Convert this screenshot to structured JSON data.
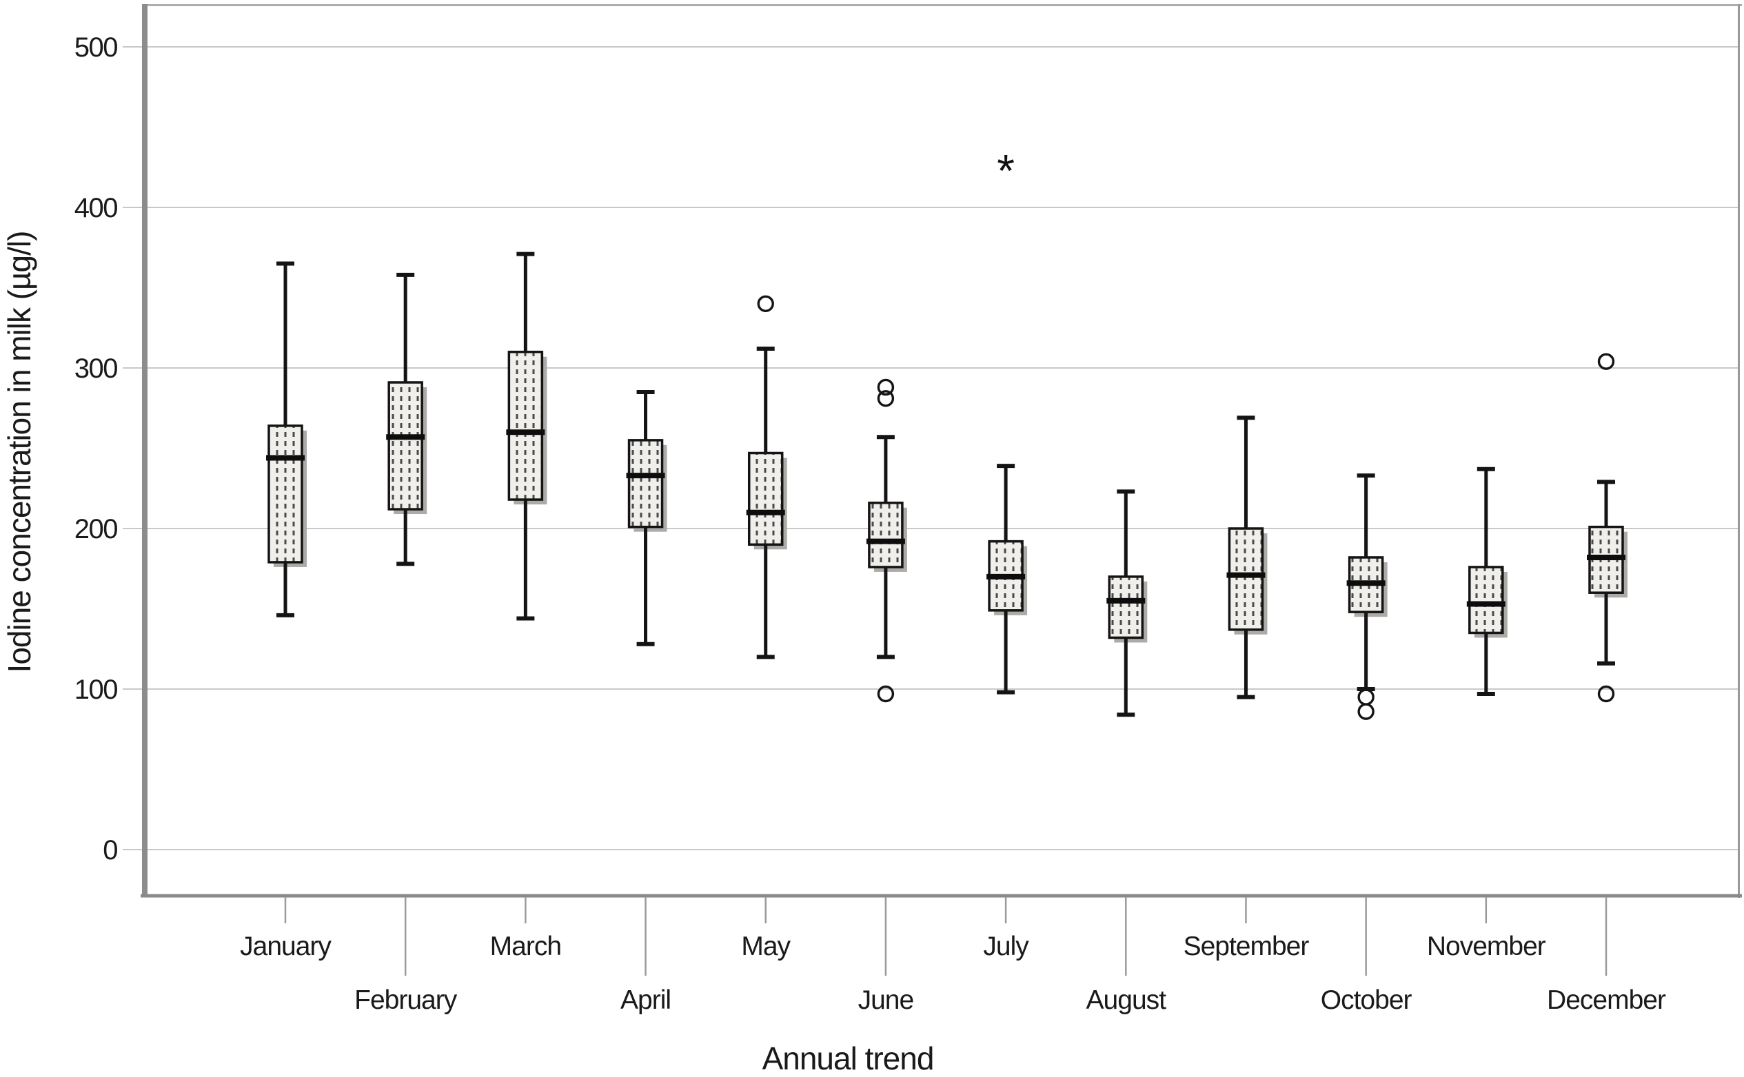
{
  "page": {
    "background": "#ffffff"
  },
  "chart_data": {
    "type": "boxplot",
    "title": "",
    "xlabel": "Annual trend",
    "ylabel": "Iodine concentration in milk (µg/l)",
    "grid": "horizontal",
    "legend": null,
    "yticks": [
      0,
      100,
      200,
      300,
      400,
      500
    ],
    "ylim": [
      -29,
      527
    ],
    "categories": [
      "January",
      "February",
      "March",
      "April",
      "May",
      "June",
      "July",
      "August",
      "September",
      "October",
      "November",
      "December"
    ],
    "series": [
      {
        "month": "January",
        "min": 146,
        "q1": 179,
        "median": 244,
        "q3": 264,
        "max": 365,
        "outliers": [],
        "extremes": []
      },
      {
        "month": "February",
        "min": 178,
        "q1": 212,
        "median": 257,
        "q3": 291,
        "max": 358,
        "outliers": [],
        "extremes": []
      },
      {
        "month": "March",
        "min": 144,
        "q1": 218,
        "median": 260,
        "q3": 310,
        "max": 371,
        "outliers": [],
        "extremes": []
      },
      {
        "month": "April",
        "min": 128,
        "q1": 201,
        "median": 233,
        "q3": 255,
        "max": 285,
        "outliers": [],
        "extremes": []
      },
      {
        "month": "May",
        "min": 120,
        "q1": 190,
        "median": 210,
        "q3": 247,
        "max": 312,
        "outliers": [
          340
        ],
        "extremes": []
      },
      {
        "month": "June",
        "min": 120,
        "q1": 176,
        "median": 192,
        "q3": 216,
        "max": 257,
        "outliers": [
          288,
          281,
          97
        ],
        "extremes": []
      },
      {
        "month": "July",
        "min": 98,
        "q1": 149,
        "median": 170,
        "q3": 192,
        "max": 239,
        "outliers": [],
        "extremes": [
          426
        ]
      },
      {
        "month": "August",
        "min": 84,
        "q1": 132,
        "median": 155,
        "q3": 170,
        "max": 223,
        "outliers": [],
        "extremes": []
      },
      {
        "month": "September",
        "min": 95,
        "q1": 137,
        "median": 171,
        "q3": 200,
        "max": 269,
        "outliers": [],
        "extremes": []
      },
      {
        "month": "October",
        "min": 100,
        "q1": 148,
        "median": 166,
        "q3": 182,
        "max": 233,
        "outliers": [
          95,
          86
        ],
        "extremes": []
      },
      {
        "month": "November",
        "min": 97,
        "q1": 135,
        "median": 153,
        "q3": 176,
        "max": 237,
        "outliers": [],
        "extremes": []
      },
      {
        "month": "December",
        "min": 116,
        "q1": 160,
        "median": 182,
        "q3": 201,
        "max": 229,
        "outliers": [
          304,
          97
        ],
        "extremes": []
      }
    ],
    "colors": {
      "box_fill_base": "#f1efeb",
      "box_dash": "#4a4a4a",
      "box_stroke": "#141414",
      "box_shadow": "#adaba8",
      "gridline": "#c9c9c9",
      "axis_gray": "#8c8c8c",
      "tick_gray": "#9b9b9b"
    }
  }
}
